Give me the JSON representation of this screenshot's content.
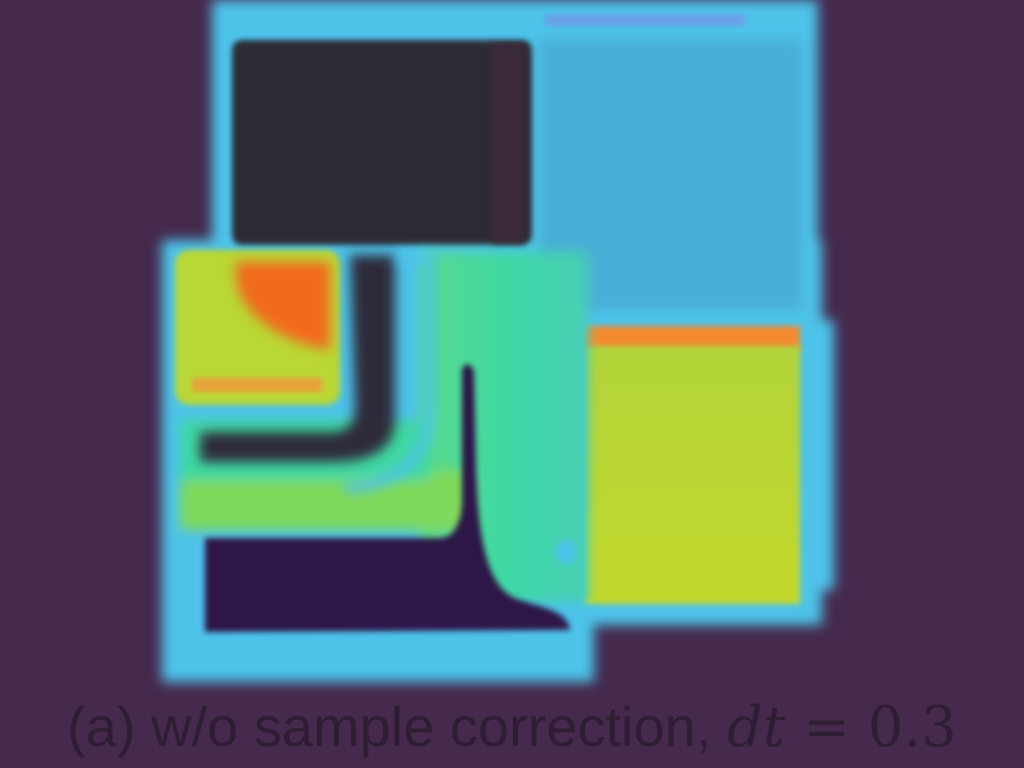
{
  "figure": {
    "caption_prefix": "(a) w/o sample correction,",
    "caption_var": "dt",
    "caption_op": " = ",
    "caption_value": "0.3"
  },
  "colors": {
    "background": "#452a4e",
    "cyan_border": "#4ec3ea",
    "sky_block": "#4aaed6",
    "dark_block": "#2e2a36",
    "teal_green": "#3fd9a3",
    "yellow_green": "#bfd72f",
    "orange": "#f58a2f",
    "deep_orange": "#f26a1d",
    "deep_purple": "#2d124a",
    "caption_text": "#2e1e33"
  }
}
